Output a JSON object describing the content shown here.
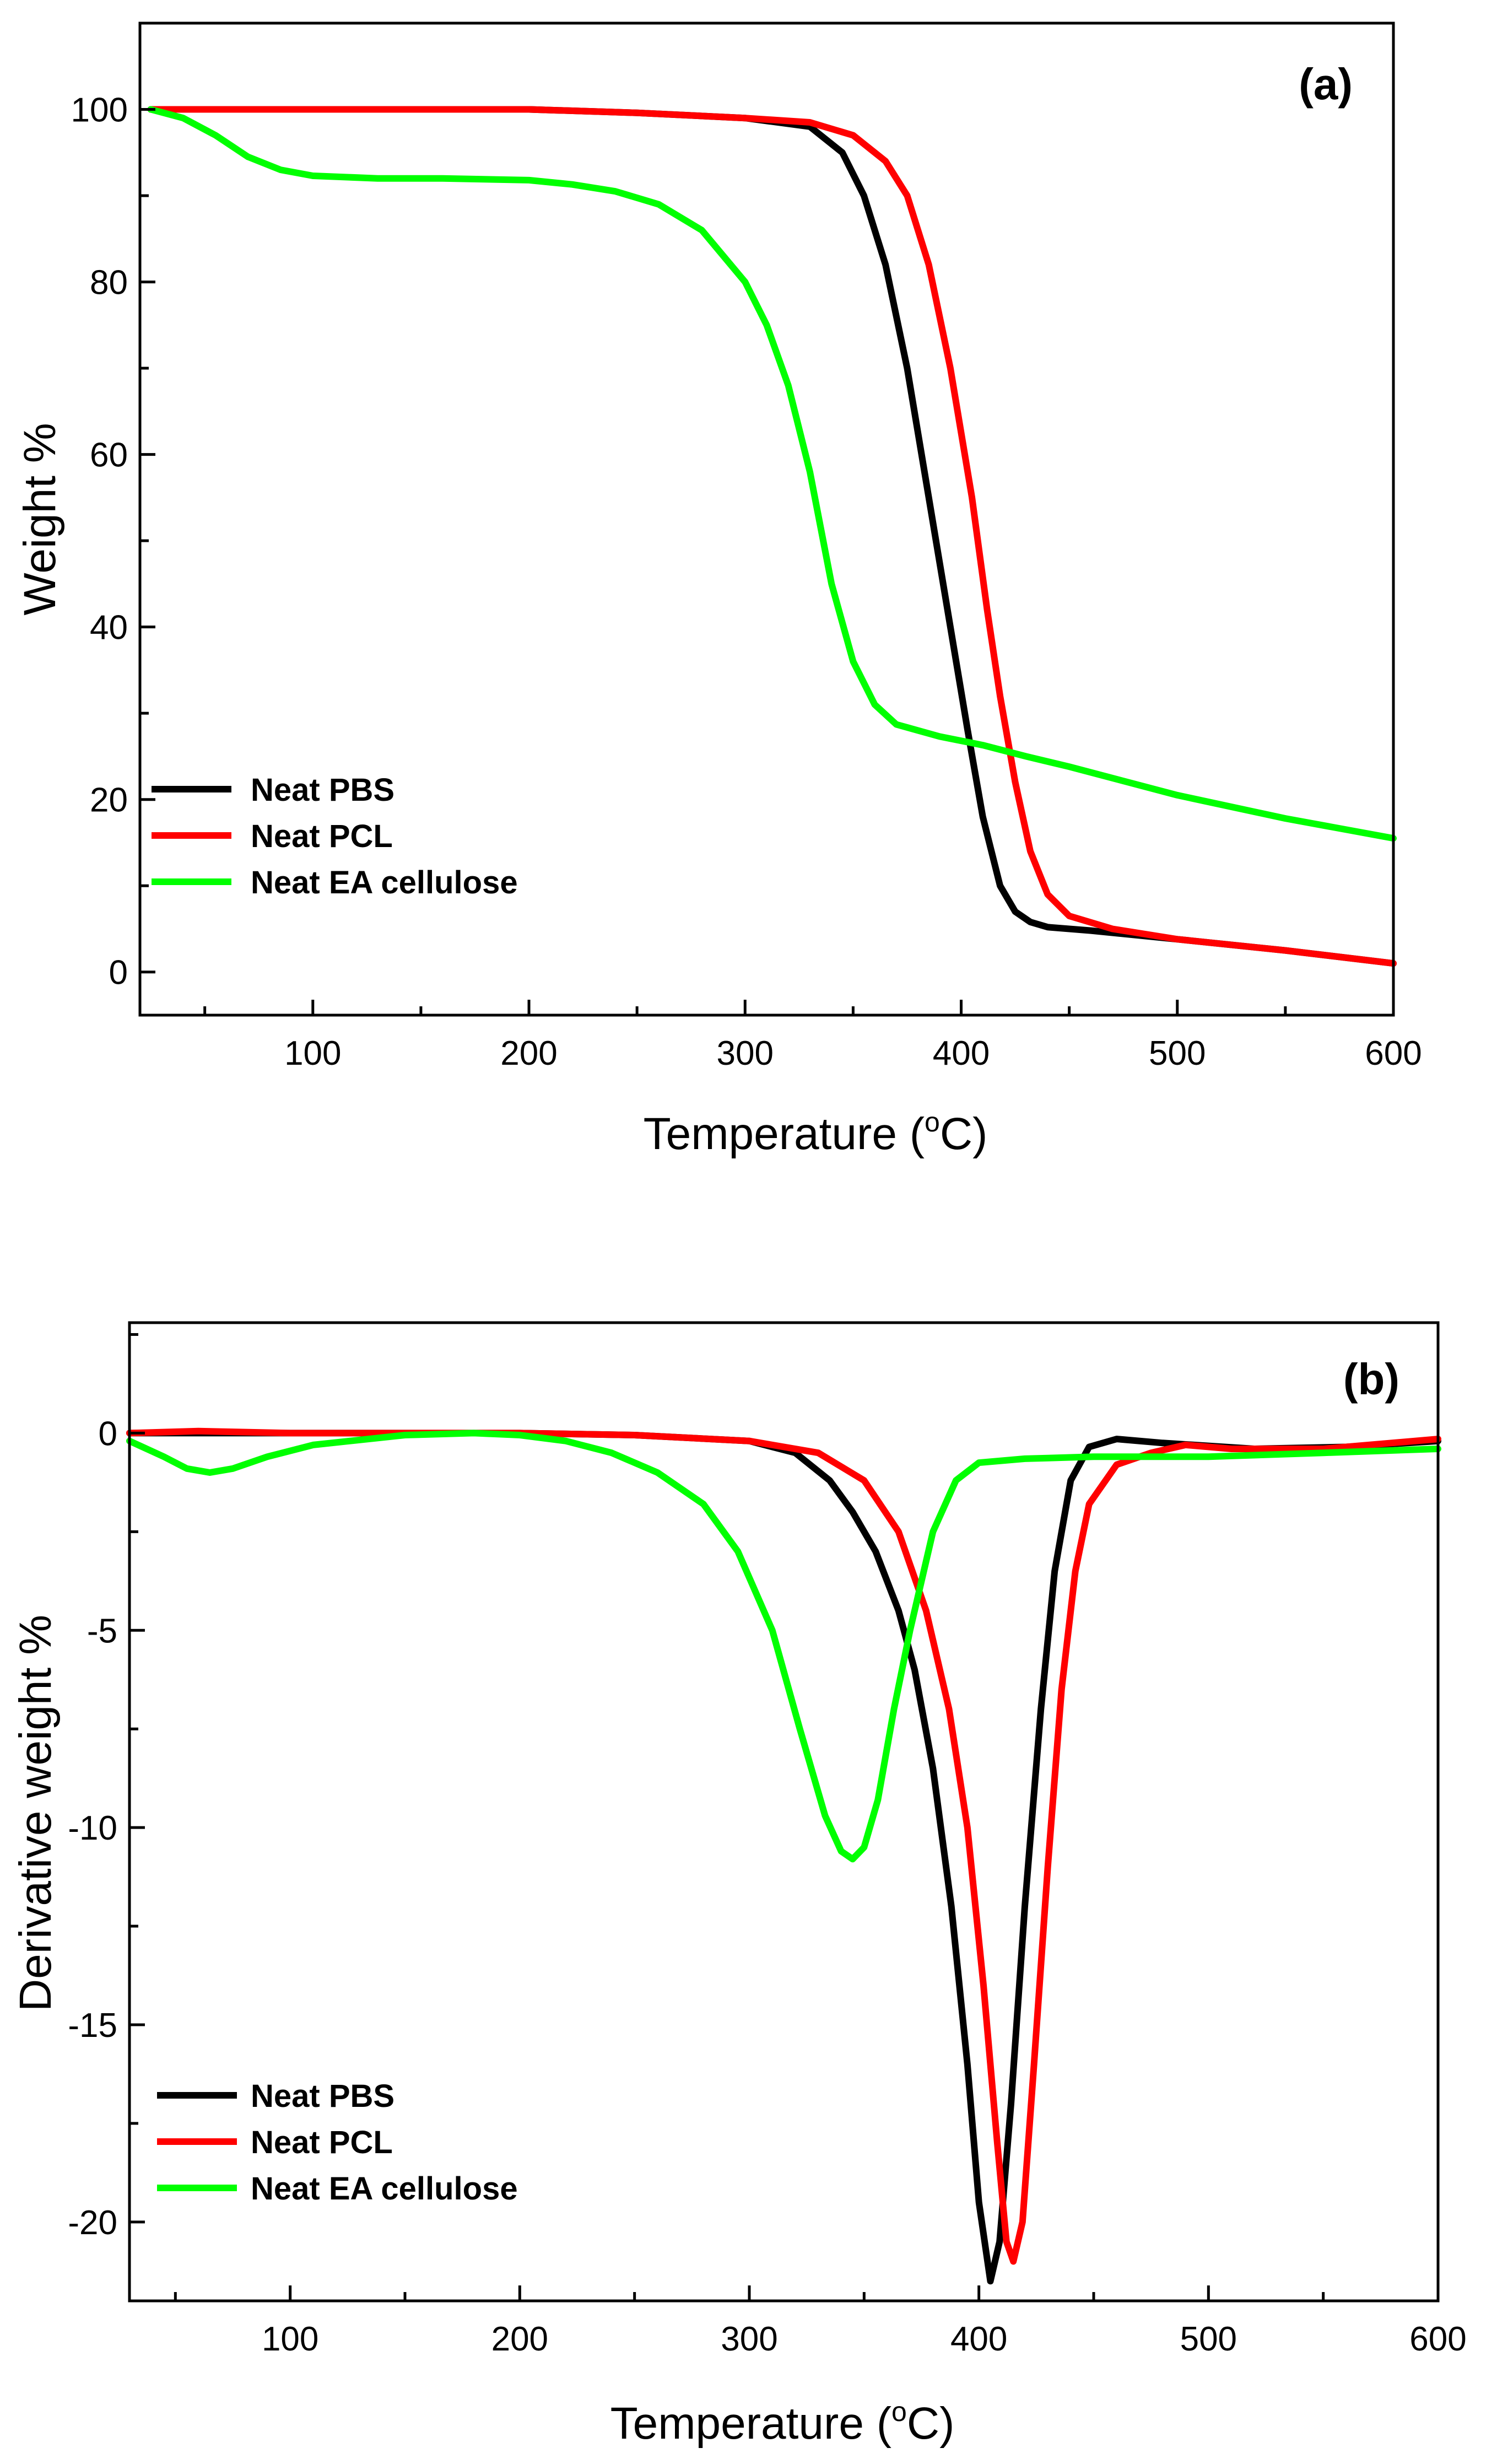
{
  "chart_data": [
    {
      "id": "a",
      "type": "line",
      "panel_label": "(a)",
      "xlabel": "Temperature",
      "xlabel_unit_sup": "o",
      "xlabel_unit": "C",
      "ylabel": "Weight %",
      "xlim": [
        20,
        600
      ],
      "ylim": [
        -5,
        110
      ],
      "xticks": [
        100,
        200,
        300,
        400,
        500,
        600
      ],
      "yticks": [
        0,
        20,
        40,
        60,
        80,
        100
      ],
      "legend_position": "bottom-left",
      "series": [
        {
          "name": "Neat PBS",
          "color": "#000000",
          "points": [
            [
              25,
              100
            ],
            [
              50,
              100
            ],
            [
              100,
              100
            ],
            [
              150,
              100
            ],
            [
              200,
              100
            ],
            [
              250,
              99.6
            ],
            [
              300,
              99
            ],
            [
              330,
              98
            ],
            [
              345,
              95
            ],
            [
              355,
              90
            ],
            [
              365,
              82
            ],
            [
              375,
              70
            ],
            [
              385,
              55
            ],
            [
              395,
              40
            ],
            [
              403,
              28
            ],
            [
              410,
              18
            ],
            [
              418,
              10
            ],
            [
              425,
              7
            ],
            [
              432,
              5.8
            ],
            [
              440,
              5.2
            ],
            [
              460,
              4.8
            ],
            [
              500,
              3.8
            ],
            [
              550,
              2.5
            ],
            [
              600,
              1
            ]
          ]
        },
        {
          "name": "Neat PCL",
          "color": "#ff0000",
          "points": [
            [
              25,
              100
            ],
            [
              50,
              100
            ],
            [
              100,
              100
            ],
            [
              150,
              100
            ],
            [
              200,
              100
            ],
            [
              250,
              99.6
            ],
            [
              300,
              99
            ],
            [
              330,
              98.5
            ],
            [
              350,
              97
            ],
            [
              365,
              94
            ],
            [
              375,
              90
            ],
            [
              385,
              82
            ],
            [
              395,
              70
            ],
            [
              405,
              55
            ],
            [
              412,
              42
            ],
            [
              418,
              32
            ],
            [
              425,
              22
            ],
            [
              432,
              14
            ],
            [
              440,
              9
            ],
            [
              450,
              6.5
            ],
            [
              470,
              5
            ],
            [
              500,
              3.8
            ],
            [
              550,
              2.5
            ],
            [
              600,
              1
            ]
          ]
        },
        {
          "name": "Neat EA cellulose",
          "color": "#00ff00",
          "points": [
            [
              25,
              100
            ],
            [
              40,
              99
            ],
            [
              55,
              97
            ],
            [
              70,
              94.5
            ],
            [
              85,
              93
            ],
            [
              100,
              92.3
            ],
            [
              130,
              92
            ],
            [
              160,
              92
            ],
            [
              200,
              91.8
            ],
            [
              220,
              91.3
            ],
            [
              240,
              90.5
            ],
            [
              260,
              89
            ],
            [
              280,
              86
            ],
            [
              300,
              80
            ],
            [
              310,
              75
            ],
            [
              320,
              68
            ],
            [
              330,
              58
            ],
            [
              340,
              45
            ],
            [
              350,
              36
            ],
            [
              360,
              31
            ],
            [
              370,
              28.7
            ],
            [
              390,
              27.3
            ],
            [
              410,
              26.3
            ],
            [
              430,
              25
            ],
            [
              450,
              23.8
            ],
            [
              500,
              20.5
            ],
            [
              550,
              17.8
            ],
            [
              600,
              15.5
            ]
          ]
        }
      ]
    },
    {
      "id": "b",
      "type": "line",
      "panel_label": "(b)",
      "xlabel": "Temperature",
      "xlabel_unit_sup": "o",
      "xlabel_unit": "C",
      "ylabel": "Derivative weight %",
      "xlim": [
        30,
        600
      ],
      "ylim": [
        -22,
        2.8
      ],
      "xticks": [
        100,
        200,
        300,
        400,
        500,
        600
      ],
      "yticks": [
        0,
        -5,
        -10,
        -15,
        -20
      ],
      "legend_position": "bottom-left",
      "series": [
        {
          "name": "Neat PBS",
          "color": "#000000",
          "points": [
            [
              30,
              0
            ],
            [
              100,
              0
            ],
            [
              200,
              0
            ],
            [
              250,
              -0.05
            ],
            [
              300,
              -0.2
            ],
            [
              320,
              -0.5
            ],
            [
              335,
              -1.2
            ],
            [
              345,
              -2
            ],
            [
              355,
              -3
            ],
            [
              365,
              -4.5
            ],
            [
              372,
              -6
            ],
            [
              380,
              -8.5
            ],
            [
              388,
              -12
            ],
            [
              395,
              -16
            ],
            [
              400,
              -19.5
            ],
            [
              405,
              -21.5
            ],
            [
              409,
              -20.5
            ],
            [
              414,
              -17
            ],
            [
              420,
              -12
            ],
            [
              427,
              -7
            ],
            [
              433,
              -3.5
            ],
            [
              440,
              -1.2
            ],
            [
              448,
              -0.35
            ],
            [
              460,
              -0.15
            ],
            [
              480,
              -0.25
            ],
            [
              520,
              -0.4
            ],
            [
              560,
              -0.35
            ],
            [
              600,
              -0.2
            ]
          ]
        },
        {
          "name": "Neat PCL",
          "color": "#ff0000",
          "points": [
            [
              30,
              0
            ],
            [
              60,
              0.05
            ],
            [
              100,
              0
            ],
            [
              200,
              0
            ],
            [
              250,
              -0.05
            ],
            [
              300,
              -0.2
            ],
            [
              330,
              -0.5
            ],
            [
              350,
              -1.2
            ],
            [
              365,
              -2.5
            ],
            [
              377,
              -4.5
            ],
            [
              387,
              -7
            ],
            [
              395,
              -10
            ],
            [
              402,
              -14
            ],
            [
              408,
              -18
            ],
            [
              412,
              -20.5
            ],
            [
              415,
              -21
            ],
            [
              419,
              -20
            ],
            [
              424,
              -16
            ],
            [
              430,
              -11
            ],
            [
              436,
              -6.5
            ],
            [
              442,
              -3.5
            ],
            [
              448,
              -1.8
            ],
            [
              460,
              -0.8
            ],
            [
              475,
              -0.5
            ],
            [
              490,
              -0.3
            ],
            [
              510,
              -0.4
            ],
            [
              550,
              -0.4
            ],
            [
              600,
              -0.15
            ]
          ]
        },
        {
          "name": "Neat EA cellulose",
          "color": "#00ff00",
          "points": [
            [
              30,
              -0.2
            ],
            [
              45,
              -0.6
            ],
            [
              55,
              -0.9
            ],
            [
              65,
              -1
            ],
            [
              75,
              -0.9
            ],
            [
              90,
              -0.6
            ],
            [
              110,
              -0.3
            ],
            [
              150,
              -0.05
            ],
            [
              180,
              0
            ],
            [
              200,
              -0.05
            ],
            [
              220,
              -0.2
            ],
            [
              240,
              -0.5
            ],
            [
              260,
              -1
            ],
            [
              280,
              -1.8
            ],
            [
              295,
              -3
            ],
            [
              310,
              -5
            ],
            [
              322,
              -7.5
            ],
            [
              333,
              -9.7
            ],
            [
              340,
              -10.6
            ],
            [
              345,
              -10.8
            ],
            [
              350,
              -10.5
            ],
            [
              356,
              -9.3
            ],
            [
              363,
              -7
            ],
            [
              370,
              -5
            ],
            [
              380,
              -2.5
            ],
            [
              390,
              -1.2
            ],
            [
              400,
              -0.75
            ],
            [
              420,
              -0.65
            ],
            [
              450,
              -0.6
            ],
            [
              500,
              -0.6
            ],
            [
              550,
              -0.5
            ],
            [
              600,
              -0.4
            ]
          ]
        }
      ]
    }
  ]
}
